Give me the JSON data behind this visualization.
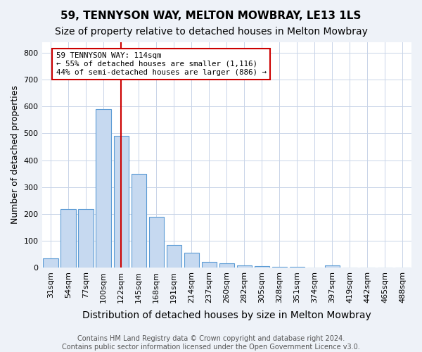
{
  "title": "59, TENNYSON WAY, MELTON MOWBRAY, LE13 1LS",
  "subtitle": "Size of property relative to detached houses in Melton Mowbray",
  "xlabel": "Distribution of detached houses by size in Melton Mowbray",
  "ylabel": "Number of detached properties",
  "categories": [
    "31sqm",
    "54sqm",
    "77sqm",
    "100sqm",
    "122sqm",
    "145sqm",
    "168sqm",
    "191sqm",
    "214sqm",
    "237sqm",
    "260sqm",
    "282sqm",
    "305sqm",
    "328sqm",
    "351sqm",
    "374sqm",
    "397sqm",
    "419sqm",
    "442sqm",
    "465sqm",
    "488sqm"
  ],
  "values": [
    35,
    218,
    218,
    590,
    490,
    350,
    190,
    85,
    55,
    20,
    15,
    8,
    5,
    3,
    2,
    1,
    8,
    0,
    0,
    0,
    0
  ],
  "bar_color": "#c6d9f0",
  "bar_edge_color": "#5b9bd5",
  "red_line_index": 4,
  "red_line_color": "#cc0000",
  "annotation_text": "59 TENNYSON WAY: 114sqm\n← 55% of detached houses are smaller (1,116)\n44% of semi-detached houses are larger (886) →",
  "annotation_box_color": "white",
  "annotation_box_edge": "#cc0000",
  "ylim": [
    0,
    840
  ],
  "yticks": [
    0,
    100,
    200,
    300,
    400,
    500,
    600,
    700,
    800
  ],
  "footer_line1": "Contains HM Land Registry data © Crown copyright and database right 2024.",
  "footer_line2": "Contains public sector information licensed under the Open Government Licence v3.0.",
  "title_fontsize": 11,
  "subtitle_fontsize": 10,
  "xlabel_fontsize": 10,
  "ylabel_fontsize": 9,
  "tick_fontsize": 8,
  "footer_fontsize": 7,
  "background_color": "#eef2f8",
  "plot_bg_color": "#ffffff",
  "grid_color": "#c8d4e8"
}
